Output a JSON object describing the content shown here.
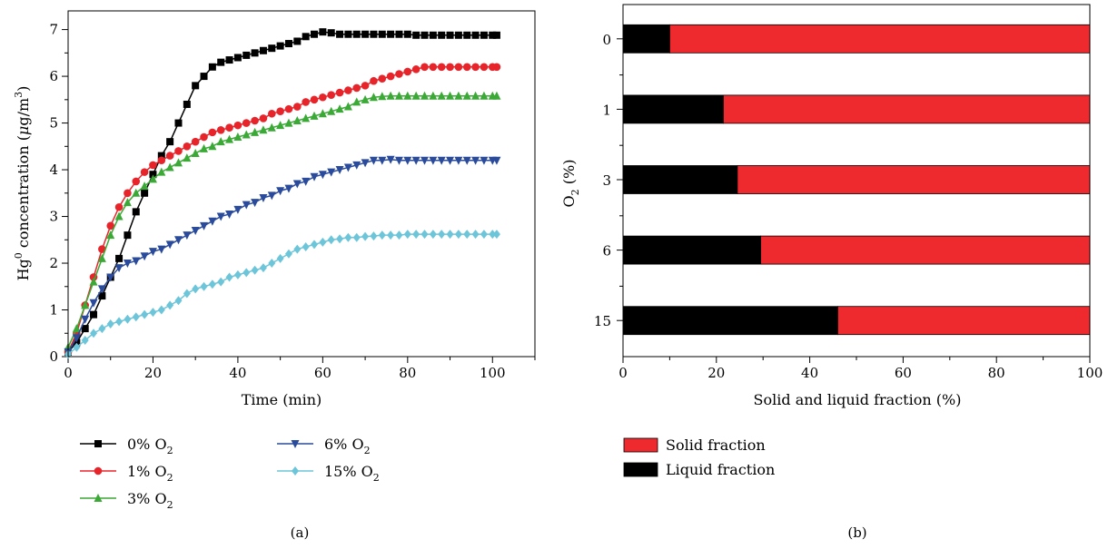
{
  "chart_data": [
    {
      "type": "line",
      "panel_label": "(a)",
      "xlabel": "Time (min)",
      "ylabel": "Hg⁰ concentration (μg/m³)",
      "ylabel_parts": {
        "prefix": "Hg",
        "sup": "0",
        "mid": " concentration (",
        "mu": "μ",
        "unit": "g/m",
        "unit_sup": "3",
        "suffix": ")"
      },
      "xlim": [
        0,
        110
      ],
      "ylim": [
        0,
        7.4
      ],
      "xticks": [
        "0",
        "20",
        "40",
        "60",
        "80",
        "100"
      ],
      "yticks": [
        "0",
        "1",
        "2",
        "3",
        "4",
        "5",
        "6",
        "7"
      ],
      "legend_position": "below",
      "series": [
        {
          "name": "0% O2",
          "label": "0%",
          "sub": "O",
          "sub_index": "2",
          "color": "#000000",
          "marker": "square",
          "x": [
            0,
            2,
            4,
            6,
            8,
            10,
            12,
            14,
            16,
            18,
            20,
            22,
            24,
            26,
            28,
            30,
            32,
            34,
            36,
            38,
            40,
            42,
            44,
            46,
            48,
            50,
            52,
            54,
            56,
            58,
            60,
            62,
            64,
            66,
            68,
            70,
            72,
            74,
            76,
            78,
            80,
            82,
            84,
            86,
            88,
            90,
            92,
            94,
            96,
            98,
            100,
            101
          ],
          "y": [
            0.1,
            0.3,
            0.6,
            0.9,
            1.3,
            1.7,
            2.1,
            2.6,
            3.1,
            3.5,
            3.9,
            4.3,
            4.6,
            5.0,
            5.4,
            5.8,
            6.0,
            6.2,
            6.3,
            6.35,
            6.4,
            6.45,
            6.5,
            6.55,
            6.6,
            6.65,
            6.7,
            6.75,
            6.85,
            6.9,
            6.95,
            6.93,
            6.9,
            6.9,
            6.9,
            6.9,
            6.9,
            6.9,
            6.9,
            6.9,
            6.9,
            6.88,
            6.88,
            6.88,
            6.88,
            6.88,
            6.88,
            6.88,
            6.88,
            6.88,
            6.88,
            6.88
          ]
        },
        {
          "name": "1% O2",
          "label": "1%",
          "sub": "O",
          "sub_index": "2",
          "color": "#e8242b",
          "marker": "circle",
          "x": [
            0,
            2,
            4,
            6,
            8,
            10,
            12,
            14,
            16,
            18,
            20,
            22,
            24,
            26,
            28,
            30,
            32,
            34,
            36,
            38,
            40,
            42,
            44,
            46,
            48,
            50,
            52,
            54,
            56,
            58,
            60,
            62,
            64,
            66,
            68,
            70,
            72,
            74,
            76,
            78,
            80,
            82,
            84,
            86,
            88,
            90,
            92,
            94,
            96,
            98,
            100,
            101
          ],
          "y": [
            0.1,
            0.5,
            1.1,
            1.7,
            2.3,
            2.8,
            3.2,
            3.5,
            3.75,
            3.95,
            4.1,
            4.2,
            4.3,
            4.4,
            4.5,
            4.6,
            4.7,
            4.8,
            4.85,
            4.9,
            4.95,
            5.0,
            5.05,
            5.1,
            5.2,
            5.25,
            5.3,
            5.35,
            5.45,
            5.5,
            5.55,
            5.6,
            5.65,
            5.7,
            5.75,
            5.8,
            5.9,
            5.95,
            6.0,
            6.05,
            6.1,
            6.15,
            6.2,
            6.2,
            6.2,
            6.2,
            6.2,
            6.2,
            6.2,
            6.2,
            6.2,
            6.2
          ]
        },
        {
          "name": "3% O2",
          "label": "3%",
          "sub": "O",
          "sub_index": "2",
          "color": "#3aa935",
          "marker": "triangle-up",
          "x": [
            0,
            2,
            4,
            6,
            8,
            10,
            12,
            14,
            16,
            18,
            20,
            22,
            24,
            26,
            28,
            30,
            32,
            34,
            36,
            38,
            40,
            42,
            44,
            46,
            48,
            50,
            52,
            54,
            56,
            58,
            60,
            62,
            64,
            66,
            68,
            70,
            72,
            74,
            76,
            78,
            80,
            82,
            84,
            86,
            88,
            90,
            92,
            94,
            96,
            98,
            100,
            101
          ],
          "y": [
            0.2,
            0.6,
            1.1,
            1.6,
            2.1,
            2.6,
            3.0,
            3.3,
            3.5,
            3.65,
            3.8,
            3.95,
            4.05,
            4.15,
            4.25,
            4.35,
            4.45,
            4.5,
            4.6,
            4.65,
            4.7,
            4.75,
            4.8,
            4.85,
            4.9,
            4.95,
            5.0,
            5.05,
            5.1,
            5.15,
            5.2,
            5.25,
            5.3,
            5.35,
            5.45,
            5.5,
            5.55,
            5.57,
            5.58,
            5.58,
            5.58,
            5.58,
            5.58,
            5.58,
            5.58,
            5.58,
            5.58,
            5.58,
            5.58,
            5.58,
            5.58,
            5.58
          ]
        },
        {
          "name": "6% O2",
          "label": "6%",
          "sub": "O",
          "sub_index": "2",
          "color": "#2a4b9b",
          "marker": "triangle-down",
          "x": [
            0,
            2,
            4,
            6,
            8,
            10,
            12,
            14,
            16,
            18,
            20,
            22,
            24,
            26,
            28,
            30,
            32,
            34,
            36,
            38,
            40,
            42,
            44,
            46,
            48,
            50,
            52,
            54,
            56,
            58,
            60,
            62,
            64,
            66,
            68,
            70,
            72,
            74,
            76,
            78,
            80,
            82,
            84,
            86,
            88,
            90,
            92,
            94,
            96,
            98,
            100,
            101
          ],
          "y": [
            0.1,
            0.4,
            0.8,
            1.15,
            1.45,
            1.7,
            1.9,
            2.0,
            2.05,
            2.15,
            2.25,
            2.3,
            2.4,
            2.5,
            2.6,
            2.7,
            2.8,
            2.9,
            3.0,
            3.05,
            3.15,
            3.25,
            3.3,
            3.4,
            3.45,
            3.55,
            3.6,
            3.7,
            3.75,
            3.85,
            3.9,
            3.95,
            4.0,
            4.05,
            4.1,
            4.15,
            4.2,
            4.2,
            4.22,
            4.2,
            4.2,
            4.2,
            4.2,
            4.2,
            4.2,
            4.2,
            4.2,
            4.2,
            4.2,
            4.2,
            4.2,
            4.2
          ]
        },
        {
          "name": "15% O2",
          "label": "15%",
          "sub": "O",
          "sub_index": "2",
          "color": "#6cc5d9",
          "marker": "diamond",
          "x": [
            0,
            2,
            4,
            6,
            8,
            10,
            12,
            14,
            16,
            18,
            20,
            22,
            24,
            26,
            28,
            30,
            32,
            34,
            36,
            38,
            40,
            42,
            44,
            46,
            48,
            50,
            52,
            54,
            56,
            58,
            60,
            62,
            64,
            66,
            68,
            70,
            72,
            74,
            76,
            78,
            80,
            82,
            84,
            86,
            88,
            90,
            92,
            94,
            96,
            98,
            100,
            101
          ],
          "y": [
            0.05,
            0.2,
            0.35,
            0.5,
            0.6,
            0.7,
            0.75,
            0.8,
            0.85,
            0.9,
            0.95,
            1.0,
            1.1,
            1.2,
            1.35,
            1.45,
            1.5,
            1.55,
            1.6,
            1.7,
            1.75,
            1.8,
            1.85,
            1.9,
            2.0,
            2.1,
            2.2,
            2.3,
            2.35,
            2.4,
            2.45,
            2.5,
            2.52,
            2.55,
            2.55,
            2.57,
            2.58,
            2.6,
            2.6,
            2.6,
            2.62,
            2.62,
            2.62,
            2.62,
            2.62,
            2.62,
            2.62,
            2.62,
            2.62,
            2.62,
            2.62,
            2.62
          ]
        }
      ]
    },
    {
      "type": "bar",
      "orientation": "horizontal",
      "stacked": true,
      "panel_label": "(b)",
      "xlabel": "Solid and liquid fraction (%)",
      "ylabel": "O₂ (%)",
      "ylabel_parts": {
        "prefix": "O",
        "sub": "2",
        "suffix": " (%)"
      },
      "xlim": [
        0,
        100
      ],
      "xticks": [
        "0",
        "20",
        "40",
        "60",
        "80",
        "100"
      ],
      "categories": [
        "0",
        "1",
        "3",
        "6",
        "15"
      ],
      "legend_position": "below",
      "series": [
        {
          "name": "Solid fraction",
          "color": "#ee2a2f",
          "values": [
            90,
            78.5,
            75.5,
            70.5,
            54
          ]
        },
        {
          "name": "Liquid fraction",
          "color": "#000000",
          "values": [
            10,
            21.5,
            24.5,
            29.5,
            46
          ]
        }
      ]
    }
  ]
}
